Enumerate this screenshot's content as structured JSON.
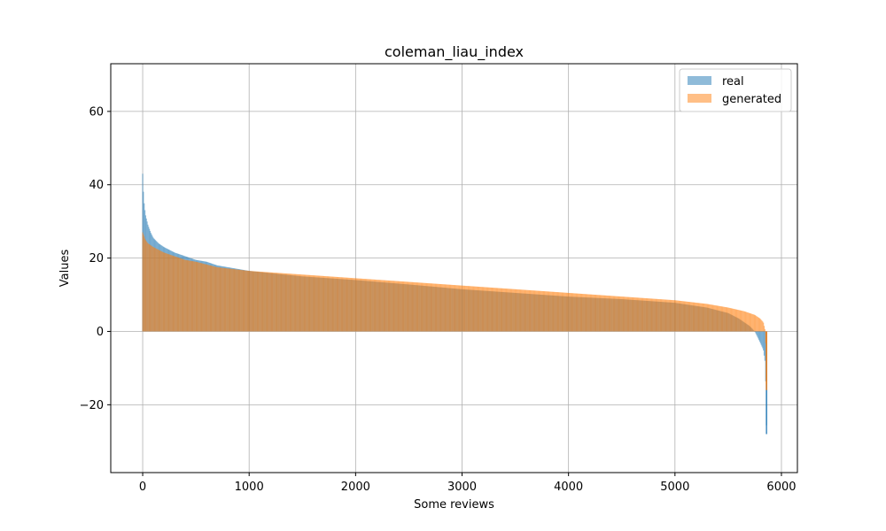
{
  "chart_data": {
    "type": "bar",
    "title": "coleman_liau_index",
    "xlabel": "Some reviews",
    "ylabel": "Values",
    "xlim": [
      -300,
      6150
    ],
    "ylim": [
      -38.5,
      73
    ],
    "x_ticks": [
      0,
      1000,
      2000,
      3000,
      4000,
      5000,
      6000
    ],
    "y_ticks": [
      -20,
      0,
      20,
      40,
      60
    ],
    "x_tick_labels": [
      "0",
      "1000",
      "2000",
      "3000",
      "4000",
      "5000",
      "6000"
    ],
    "y_tick_labels": [
      "−20",
      "0",
      "20",
      "40",
      "60"
    ],
    "grid": true,
    "legend_position": "upper right",
    "series": [
      {
        "name": "real",
        "color": "#1f77b4",
        "opacity": 0.5,
        "x": [
          0,
          10,
          25,
          50,
          75,
          100,
          150,
          200,
          300,
          400,
          500,
          600,
          700,
          800,
          1000,
          1500,
          2000,
          2500,
          3000,
          3500,
          4000,
          4500,
          5000,
          5300,
          5500,
          5600,
          5700,
          5750,
          5800,
          5830,
          5845,
          5855,
          5860
        ],
        "values": [
          43,
          36,
          32,
          29,
          27,
          25.5,
          24,
          23,
          21.5,
          20.5,
          19.5,
          19,
          18,
          17.5,
          16.5,
          15,
          14,
          12.8,
          11.5,
          10.5,
          9.5,
          8.8,
          7.8,
          6.5,
          5,
          3.5,
          1.5,
          0,
          -3,
          -5,
          -8,
          -16,
          -28
        ]
      },
      {
        "name": "generated",
        "color": "#ff7f0e",
        "opacity": 0.5,
        "x": [
          0,
          25,
          50,
          100,
          200,
          300,
          400,
          500,
          700,
          1000,
          1500,
          2000,
          2500,
          3000,
          3500,
          4000,
          4500,
          5000,
          5300,
          5500,
          5650,
          5750,
          5800,
          5830,
          5850,
          5860
        ],
        "values": [
          27,
          25,
          24,
          23,
          21.5,
          20.5,
          19.5,
          19,
          17.5,
          16.5,
          15.5,
          14.5,
          13.5,
          12.5,
          11.5,
          10.5,
          9.5,
          8.5,
          7.5,
          6.5,
          5.5,
          4.5,
          3.5,
          2.5,
          0,
          -16
        ]
      }
    ]
  }
}
